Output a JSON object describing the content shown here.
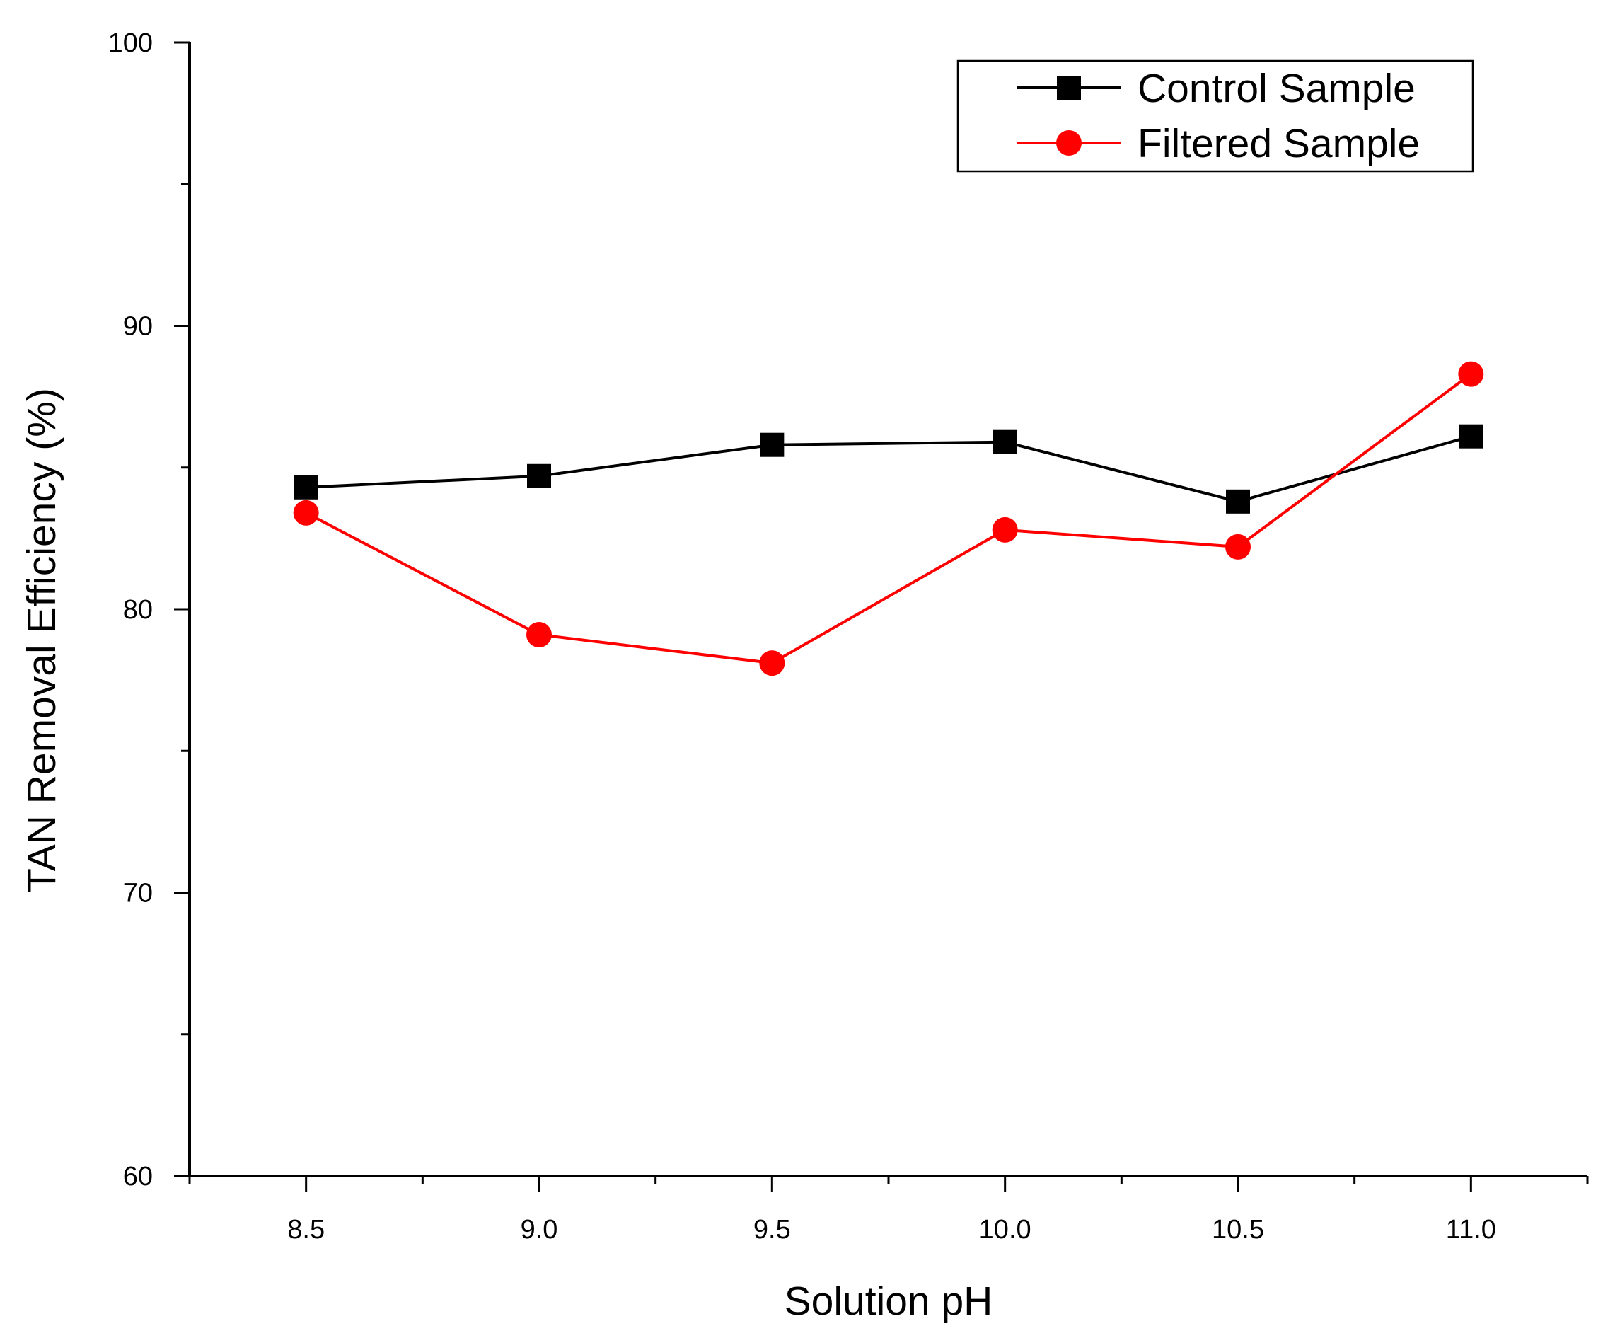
{
  "chart_data": {
    "type": "line",
    "title": "",
    "xlabel": "Solution pH",
    "ylabel": "TAN Removal Efficiency (%)",
    "x": [
      8.5,
      9.0,
      9.5,
      10.0,
      10.5,
      11.0
    ],
    "xlim": [
      8.25,
      11.25
    ],
    "ylim": [
      60,
      100
    ],
    "x_ticks": [
      {
        "value": 8.5,
        "label": "8.5"
      },
      {
        "value": 9.0,
        "label": "9.0"
      },
      {
        "value": 9.5,
        "label": "9.5"
      },
      {
        "value": 10.0,
        "label": "10.0"
      },
      {
        "value": 10.5,
        "label": "10.5"
      },
      {
        "value": 11.0,
        "label": "11.0"
      }
    ],
    "x_minor_ticks": [
      8.25,
      8.75,
      9.25,
      9.75,
      10.25,
      10.75,
      11.25
    ],
    "y_ticks": [
      {
        "value": 60,
        "label": "60"
      },
      {
        "value": 70,
        "label": "70"
      },
      {
        "value": 80,
        "label": "80"
      },
      {
        "value": 90,
        "label": "90"
      },
      {
        "value": 100,
        "label": "100"
      }
    ],
    "y_minor_ticks": [
      65,
      75,
      85,
      95
    ],
    "grid": false,
    "legend_position": "top-right",
    "series": [
      {
        "name": "Control Sample",
        "color": "#000000",
        "marker": "square",
        "values": [
          84.3,
          84.7,
          85.8,
          85.9,
          83.8,
          86.1
        ]
      },
      {
        "name": "Filtered Sample",
        "color": "#ff0000",
        "marker": "circle",
        "values": [
          83.4,
          79.1,
          78.1,
          82.8,
          82.2,
          88.3
        ]
      }
    ]
  }
}
